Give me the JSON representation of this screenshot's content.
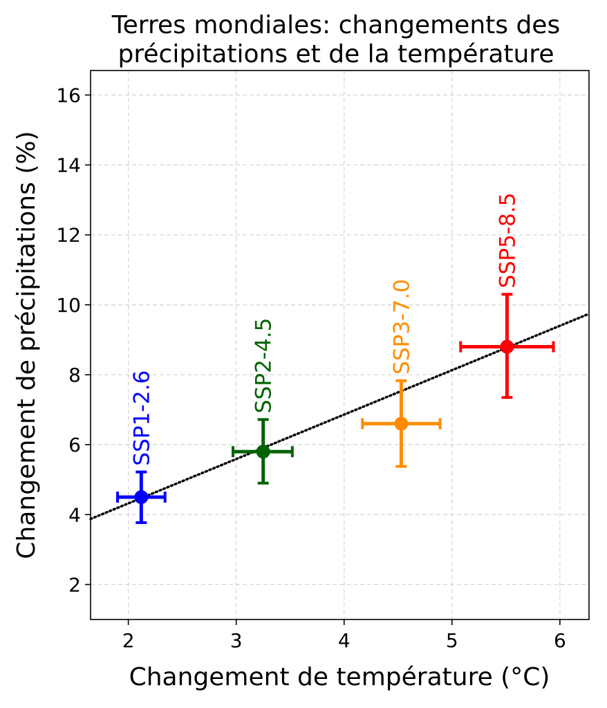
{
  "chart_data": {
    "type": "scatter",
    "title": "Terres mondiales: changements des\nprécipitations et de la température",
    "xlabel": "Changement de température (°C)",
    "ylabel": "Changement de précipitations (%)",
    "xlim": [
      1.65,
      6.27
    ],
    "ylim": [
      1.0,
      16.7
    ],
    "xticks": [
      2,
      3,
      4,
      5,
      6
    ],
    "yticks": [
      2,
      4,
      6,
      8,
      10,
      12,
      14,
      16
    ],
    "grid": true,
    "series": [
      {
        "name": "SSP1-2.6",
        "color": "#0000ff",
        "x": 2.12,
        "y": 4.5,
        "xerr": [
          0.22,
          0.22
        ],
        "yerr": [
          0.73,
          0.72
        ]
      },
      {
        "name": "SSP2-4.5",
        "color": "#006400",
        "x": 3.25,
        "y": 5.8,
        "xerr": [
          0.28,
          0.27
        ],
        "yerr": [
          0.9,
          0.92
        ]
      },
      {
        "name": "SSP3-7.0",
        "color": "#ff8c00",
        "x": 4.53,
        "y": 6.6,
        "xerr": [
          0.36,
          0.36
        ],
        "yerr": [
          1.22,
          1.23
        ]
      },
      {
        "name": "SSP5-8.5",
        "color": "#ff0000",
        "x": 5.51,
        "y": 8.8,
        "xerr": [
          0.43,
          0.43
        ],
        "yerr": [
          1.45,
          1.5
        ]
      }
    ],
    "trend_line": {
      "style": "dotted",
      "color": "#000000",
      "slope": 1.27,
      "intercept": 1.78
    }
  }
}
